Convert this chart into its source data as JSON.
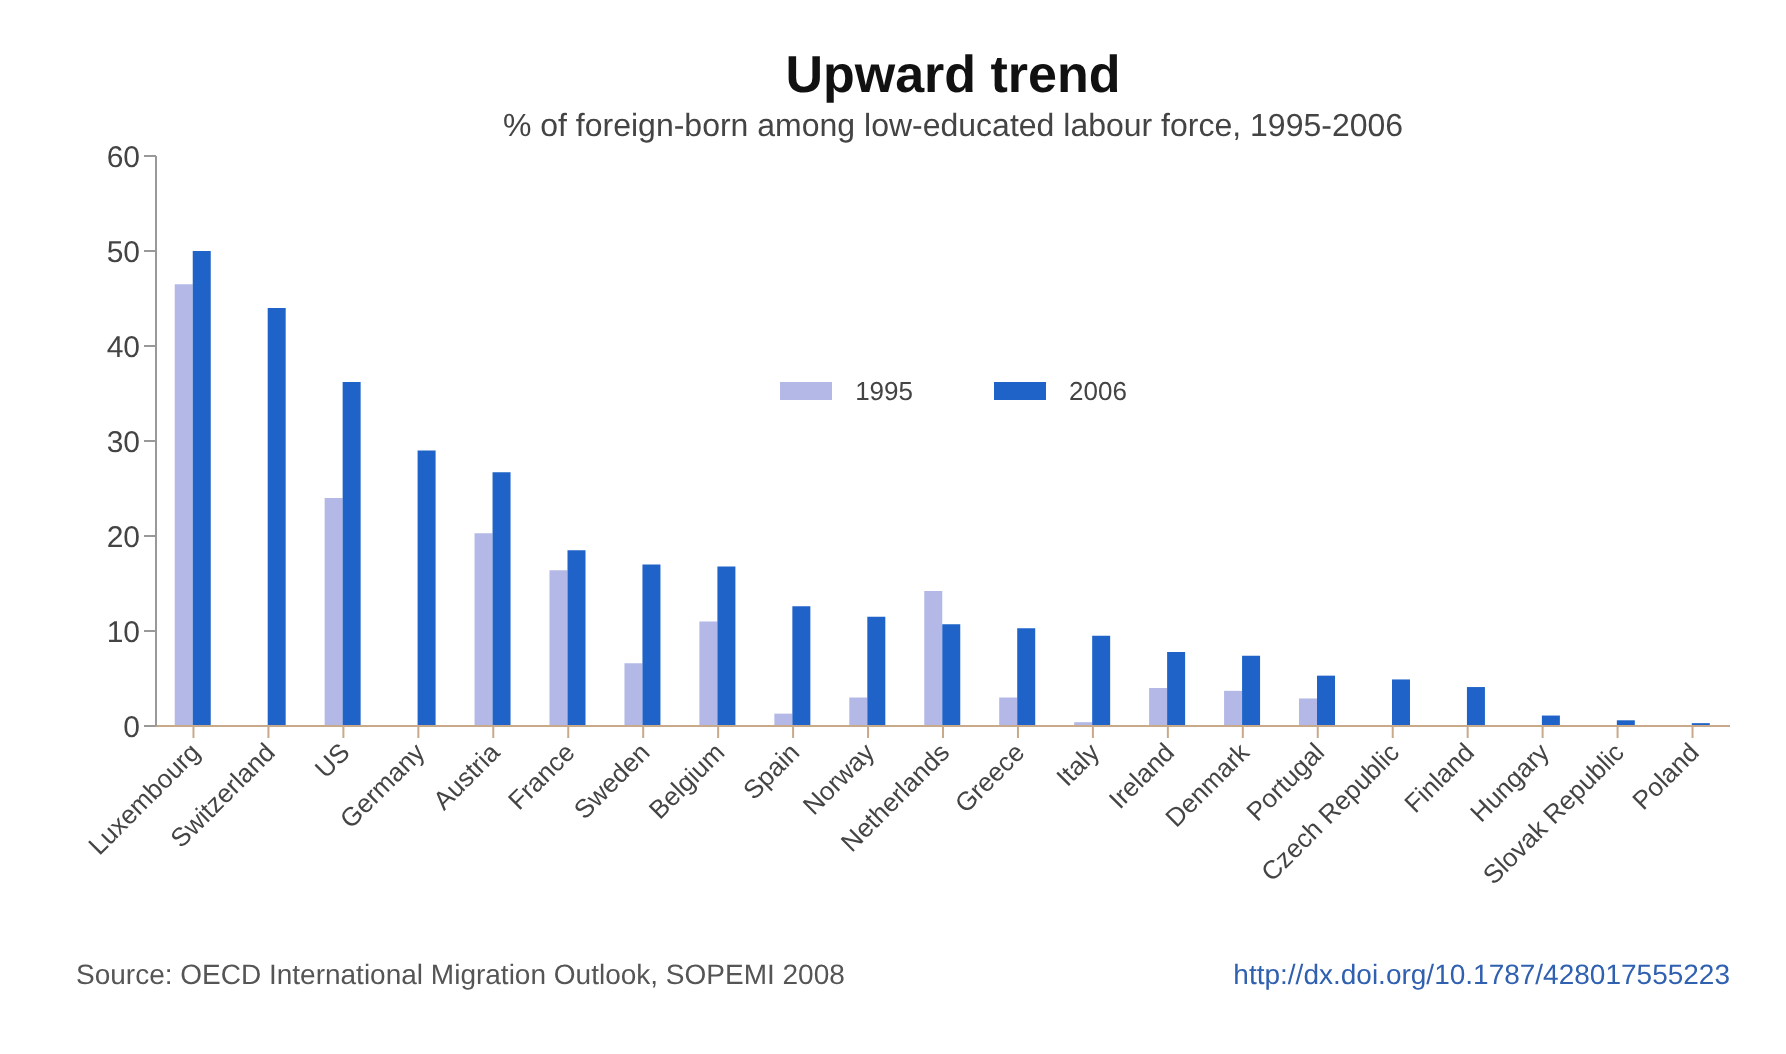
{
  "chart_data": {
    "type": "bar",
    "title": "Upward trend",
    "subtitle": "% of foreign-born among low-educated labour force, 1995-2006",
    "categories": [
      "Luxembourg",
      "Switzerland",
      "US",
      "Germany",
      "Austria",
      "France",
      "Sweden",
      "Belgium",
      "Spain",
      "Norway",
      "Netherlands",
      "Greece",
      "Italy",
      "Ireland",
      "Denmark",
      "Portugal",
      "Czech Republic",
      "Finland",
      "Hungary",
      "Slovak Republic",
      "Poland"
    ],
    "series": [
      {
        "name": "1995",
        "color": "#b3b8e6",
        "values": [
          46.5,
          null,
          24,
          null,
          20.3,
          16.4,
          6.6,
          11,
          1.3,
          3,
          14.2,
          3,
          0.4,
          4,
          3.7,
          2.9,
          null,
          null,
          null,
          null,
          null
        ]
      },
      {
        "name": "2006",
        "color": "#1f63c8",
        "values": [
          50,
          44,
          36.2,
          29,
          26.7,
          18.5,
          17,
          16.8,
          12.6,
          11.5,
          10.7,
          10.3,
          9.5,
          7.8,
          7.4,
          5.3,
          4.9,
          4.1,
          1.1,
          0.6,
          0.3
        ]
      }
    ],
    "ylim": [
      0,
      60
    ],
    "yticks": [
      0,
      10,
      20,
      30,
      40,
      50,
      60
    ],
    "grid": false,
    "legend": "top",
    "annotations": [
      "Source: OECD International Migration Outlook, SOPEMI 2008",
      "http://dx.doi.org/10.1787/428017555223"
    ]
  }
}
